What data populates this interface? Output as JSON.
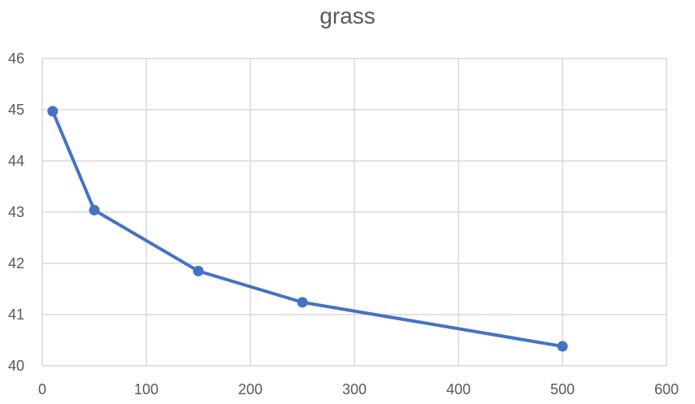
{
  "chart_data": {
    "type": "line",
    "title": "grass",
    "xlabel": "",
    "ylabel": "",
    "xlim": [
      0,
      600
    ],
    "ylim": [
      40,
      46
    ],
    "x_ticks": [
      0,
      100,
      200,
      300,
      400,
      500,
      600
    ],
    "y_ticks": [
      40,
      41,
      42,
      43,
      44,
      45,
      46
    ],
    "grid": true,
    "legend": "none",
    "series": [
      {
        "color": "#4472c4",
        "x": [
          10,
          50,
          150,
          250,
          500
        ],
        "y": [
          44.97,
          43.04,
          41.85,
          41.24,
          40.38
        ]
      }
    ]
  }
}
